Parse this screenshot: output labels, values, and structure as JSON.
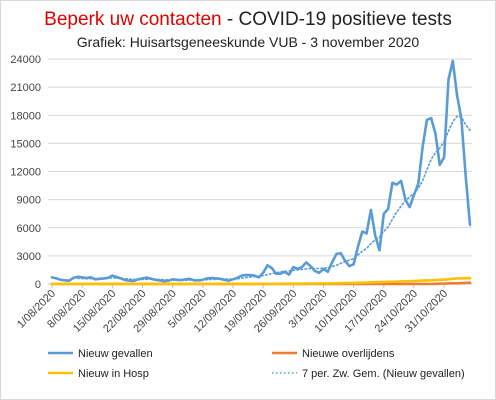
{
  "chart_data": {
    "type": "line",
    "title_part1": "Beperk uw contacten",
    "title_part2": " - COVID-19 positieve tests",
    "subtitle": "Grafiek: Huisartsgeneeskunde VUB - 3 november 2020",
    "xlabel": "",
    "ylabel": "",
    "ylim": [
      0,
      24000
    ],
    "y_ticks": [
      "0",
      "3000",
      "6000",
      "9000",
      "12000",
      "15000",
      "18000",
      "21000",
      "24000"
    ],
    "x_tick_labels": [
      "1/08/2020",
      "8/08/2020",
      "15/08/2020",
      "22/08/2020",
      "29/08/2020",
      "5/09/2020",
      "12/09/2020",
      "19/09/2020",
      "26/09/2020",
      "3/10/2020",
      "10/10/2020",
      "17/10/2020",
      "24/10/2020",
      "31/10/2020"
    ],
    "x_start_date": "2020-08-01",
    "grid": "horizontal",
    "legend_position": "bottom",
    "series": [
      {
        "name": "Nieuw gevallen",
        "color": "#5b9bd5",
        "style": "solid",
        "values": [
          700,
          600,
          450,
          400,
          350,
          650,
          780,
          700,
          620,
          720,
          500,
          550,
          600,
          650,
          900,
          750,
          600,
          420,
          350,
          330,
          500,
          600,
          680,
          550,
          450,
          380,
          300,
          350,
          500,
          450,
          420,
          500,
          550,
          400,
          380,
          450,
          600,
          650,
          600,
          550,
          450,
          350,
          500,
          650,
          900,
          950,
          950,
          900,
          700,
          1200,
          2000,
          1700,
          1100,
          1100,
          1300,
          1000,
          1800,
          1600,
          1800,
          2300,
          1900,
          1400,
          1200,
          1600,
          1300,
          2300,
          3200,
          3300,
          2500,
          1900,
          2100,
          4000,
          5600,
          5400,
          7900,
          5200,
          3600,
          7500,
          8000,
          10800,
          10600,
          11000,
          9000,
          8200,
          9500,
          10700,
          14600,
          17500,
          17700,
          16000,
          12700,
          13500,
          21800,
          23800,
          20100,
          17600,
          11500,
          6300
        ]
      },
      {
        "name": "Nieuwe overlijdens",
        "color": "#ed7d31",
        "style": "solid",
        "values": [
          3,
          3,
          3,
          3,
          3,
          3,
          3,
          3,
          3,
          3,
          3,
          3,
          3,
          3,
          3,
          3,
          3,
          3,
          3,
          3,
          3,
          3,
          3,
          3,
          3,
          3,
          3,
          3,
          3,
          3,
          3,
          3,
          3,
          3,
          3,
          3,
          3,
          3,
          3,
          3,
          3,
          3,
          3,
          3,
          3,
          3,
          3,
          3,
          3,
          3,
          3,
          3,
          3,
          3,
          3,
          3,
          3,
          3,
          3,
          3,
          3,
          3,
          3,
          3,
          3,
          3,
          3,
          3,
          3,
          3,
          3,
          3,
          3,
          3,
          3,
          3,
          3,
          3,
          3,
          3,
          3,
          3,
          3,
          3,
          3,
          3,
          3,
          3,
          3,
          20,
          30,
          40,
          60,
          70,
          80,
          100,
          120,
          140
        ]
      },
      {
        "name": "Nieuw in Hosp",
        "color": "#ffc000",
        "style": "solid",
        "values": [
          20,
          20,
          20,
          20,
          20,
          20,
          20,
          20,
          20,
          20,
          20,
          20,
          20,
          20,
          20,
          20,
          20,
          20,
          20,
          20,
          20,
          20,
          20,
          20,
          20,
          20,
          20,
          20,
          20,
          20,
          20,
          20,
          20,
          20,
          20,
          20,
          20,
          20,
          20,
          20,
          20,
          20,
          20,
          20,
          20,
          20,
          20,
          20,
          20,
          20,
          20,
          20,
          20,
          25,
          25,
          30,
          30,
          35,
          35,
          40,
          40,
          45,
          50,
          60,
          60,
          70,
          80,
          90,
          100,
          110,
          120,
          130,
          140,
          150,
          170,
          190,
          200,
          220,
          240,
          250,
          260,
          280,
          290,
          300,
          320,
          340,
          360,
          380,
          400,
          420,
          450,
          470,
          500,
          550,
          600,
          600,
          620,
          620
        ]
      },
      {
        "name": "7 per. Zw. Gem. (Nieuw gevallen)",
        "color": "#5b9bd5",
        "style": "dotted",
        "values": [
          null,
          null,
          null,
          null,
          null,
          null,
          600,
          580,
          570,
          580,
          590,
          600,
          620,
          640,
          650,
          620,
          590,
          560,
          520,
          500,
          470,
          480,
          500,
          510,
          500,
          480,
          460,
          440,
          420,
          410,
          400,
          410,
          420,
          430,
          440,
          450,
          460,
          480,
          500,
          510,
          520,
          520,
          530,
          560,
          620,
          680,
          740,
          790,
          820,
          900,
          1000,
          1100,
          1200,
          1300,
          1350,
          1400,
          1450,
          1500,
          1550,
          1600,
          1650,
          1650,
          1650,
          1700,
          1750,
          1850,
          2000,
          2200,
          2400,
          2550,
          2700,
          3100,
          3500,
          3800,
          4300,
          4700,
          5000,
          5600,
          6100,
          6900,
          7700,
          8300,
          8900,
          9300,
          9700,
          10200,
          11000,
          12200,
          13300,
          14000,
          14500,
          15200,
          16300,
          17300,
          17900,
          17800,
          17000,
          16400
        ]
      }
    ]
  }
}
